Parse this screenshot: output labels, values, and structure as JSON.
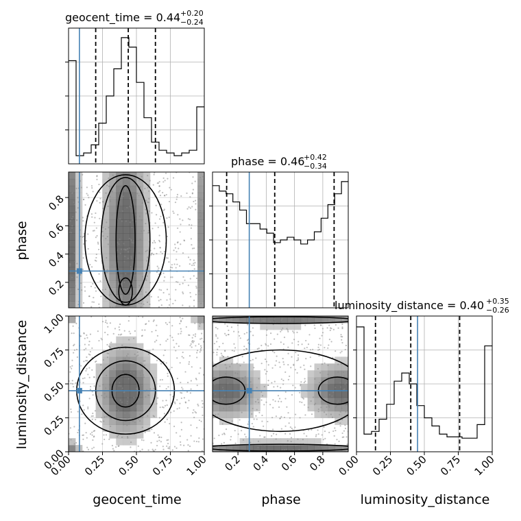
{
  "chart_data": {
    "type": "corner",
    "parameters": [
      "geocent_time",
      "phase",
      "luminosity_distance"
    ],
    "injection": {
      "geocent_time": 0.08,
      "phase": 0.28,
      "luminosity_distance": 0.45
    },
    "truth_color": "#4682b4",
    "hist_color": "#000000",
    "titles": [
      {
        "param": "geocent_time",
        "text": "geocent_time = 0.44",
        "sup": "+0.20",
        "sub": "−0.24"
      },
      {
        "param": "phase",
        "text": "phase = 0.46",
        "sup": "+0.42",
        "sub": "−0.34"
      },
      {
        "param": "luminosity_distance",
        "text": "luminosity_distance = 0.40",
        "sup": "+0.35",
        "sub": "−0.26"
      }
    ],
    "axis_labels": {
      "x": [
        "geocent_time",
        "phase",
        "luminosity_distance"
      ],
      "y": [
        "phase",
        "luminosity_distance"
      ]
    },
    "x_ticks": {
      "geocent_time": [
        "0.00",
        "0.25",
        "0.50",
        "0.75",
        "1.00"
      ],
      "phase": [
        "0.2",
        "0.4",
        "0.6",
        "0.8"
      ],
      "luminosity_distance": [
        "0.00",
        "0.25",
        "0.50",
        "0.75",
        "1.00"
      ]
    },
    "y_ticks": {
      "phase": [
        "0.2",
        "0.4",
        "0.6",
        "0.8"
      ],
      "luminosity_distance": [
        "0.00",
        "0.25",
        "0.50",
        "0.75",
        "1.00"
      ]
    },
    "tick_values": {
      "geocent_time": [
        0.0,
        0.25,
        0.5,
        0.75,
        1.0
      ],
      "phase": [
        0.2,
        0.4,
        0.6,
        0.8
      ],
      "luminosity_distance": [
        0.0,
        0.25,
        0.5,
        0.75,
        1.0
      ]
    },
    "ranges": {
      "geocent_time": [
        0.0,
        1.0
      ],
      "phase": [
        0.02,
        0.98
      ],
      "luminosity_distance": [
        0.0,
        1.0
      ]
    },
    "histograms": {
      "geocent_time": {
        "quantiles": [
          0.2,
          0.44,
          0.64
        ],
        "values": [
          0.76,
          0.06,
          0.08,
          0.14,
          0.3,
          0.5,
          0.7,
          0.93,
          0.86,
          0.6,
          0.34,
          0.16,
          0.1,
          0.08,
          0.06,
          0.08,
          0.1,
          0.42
        ]
      },
      "phase": {
        "quantiles": [
          0.12,
          0.46,
          0.88
        ],
        "values": [
          0.9,
          0.86,
          0.84,
          0.78,
          0.72,
          0.62,
          0.62,
          0.58,
          0.55,
          0.48,
          0.5,
          0.52,
          0.5,
          0.47,
          0.5,
          0.56,
          0.66,
          0.76,
          0.84,
          0.93
        ]
      },
      "luminosity_distance": {
        "quantiles": [
          0.14,
          0.4,
          0.76
        ],
        "values": [
          0.92,
          0.13,
          0.15,
          0.24,
          0.35,
          0.52,
          0.58,
          0.5,
          0.34,
          0.25,
          0.19,
          0.13,
          0.11,
          0.11,
          0.1,
          0.1,
          0.2,
          0.78
        ]
      }
    },
    "grid": true
  }
}
